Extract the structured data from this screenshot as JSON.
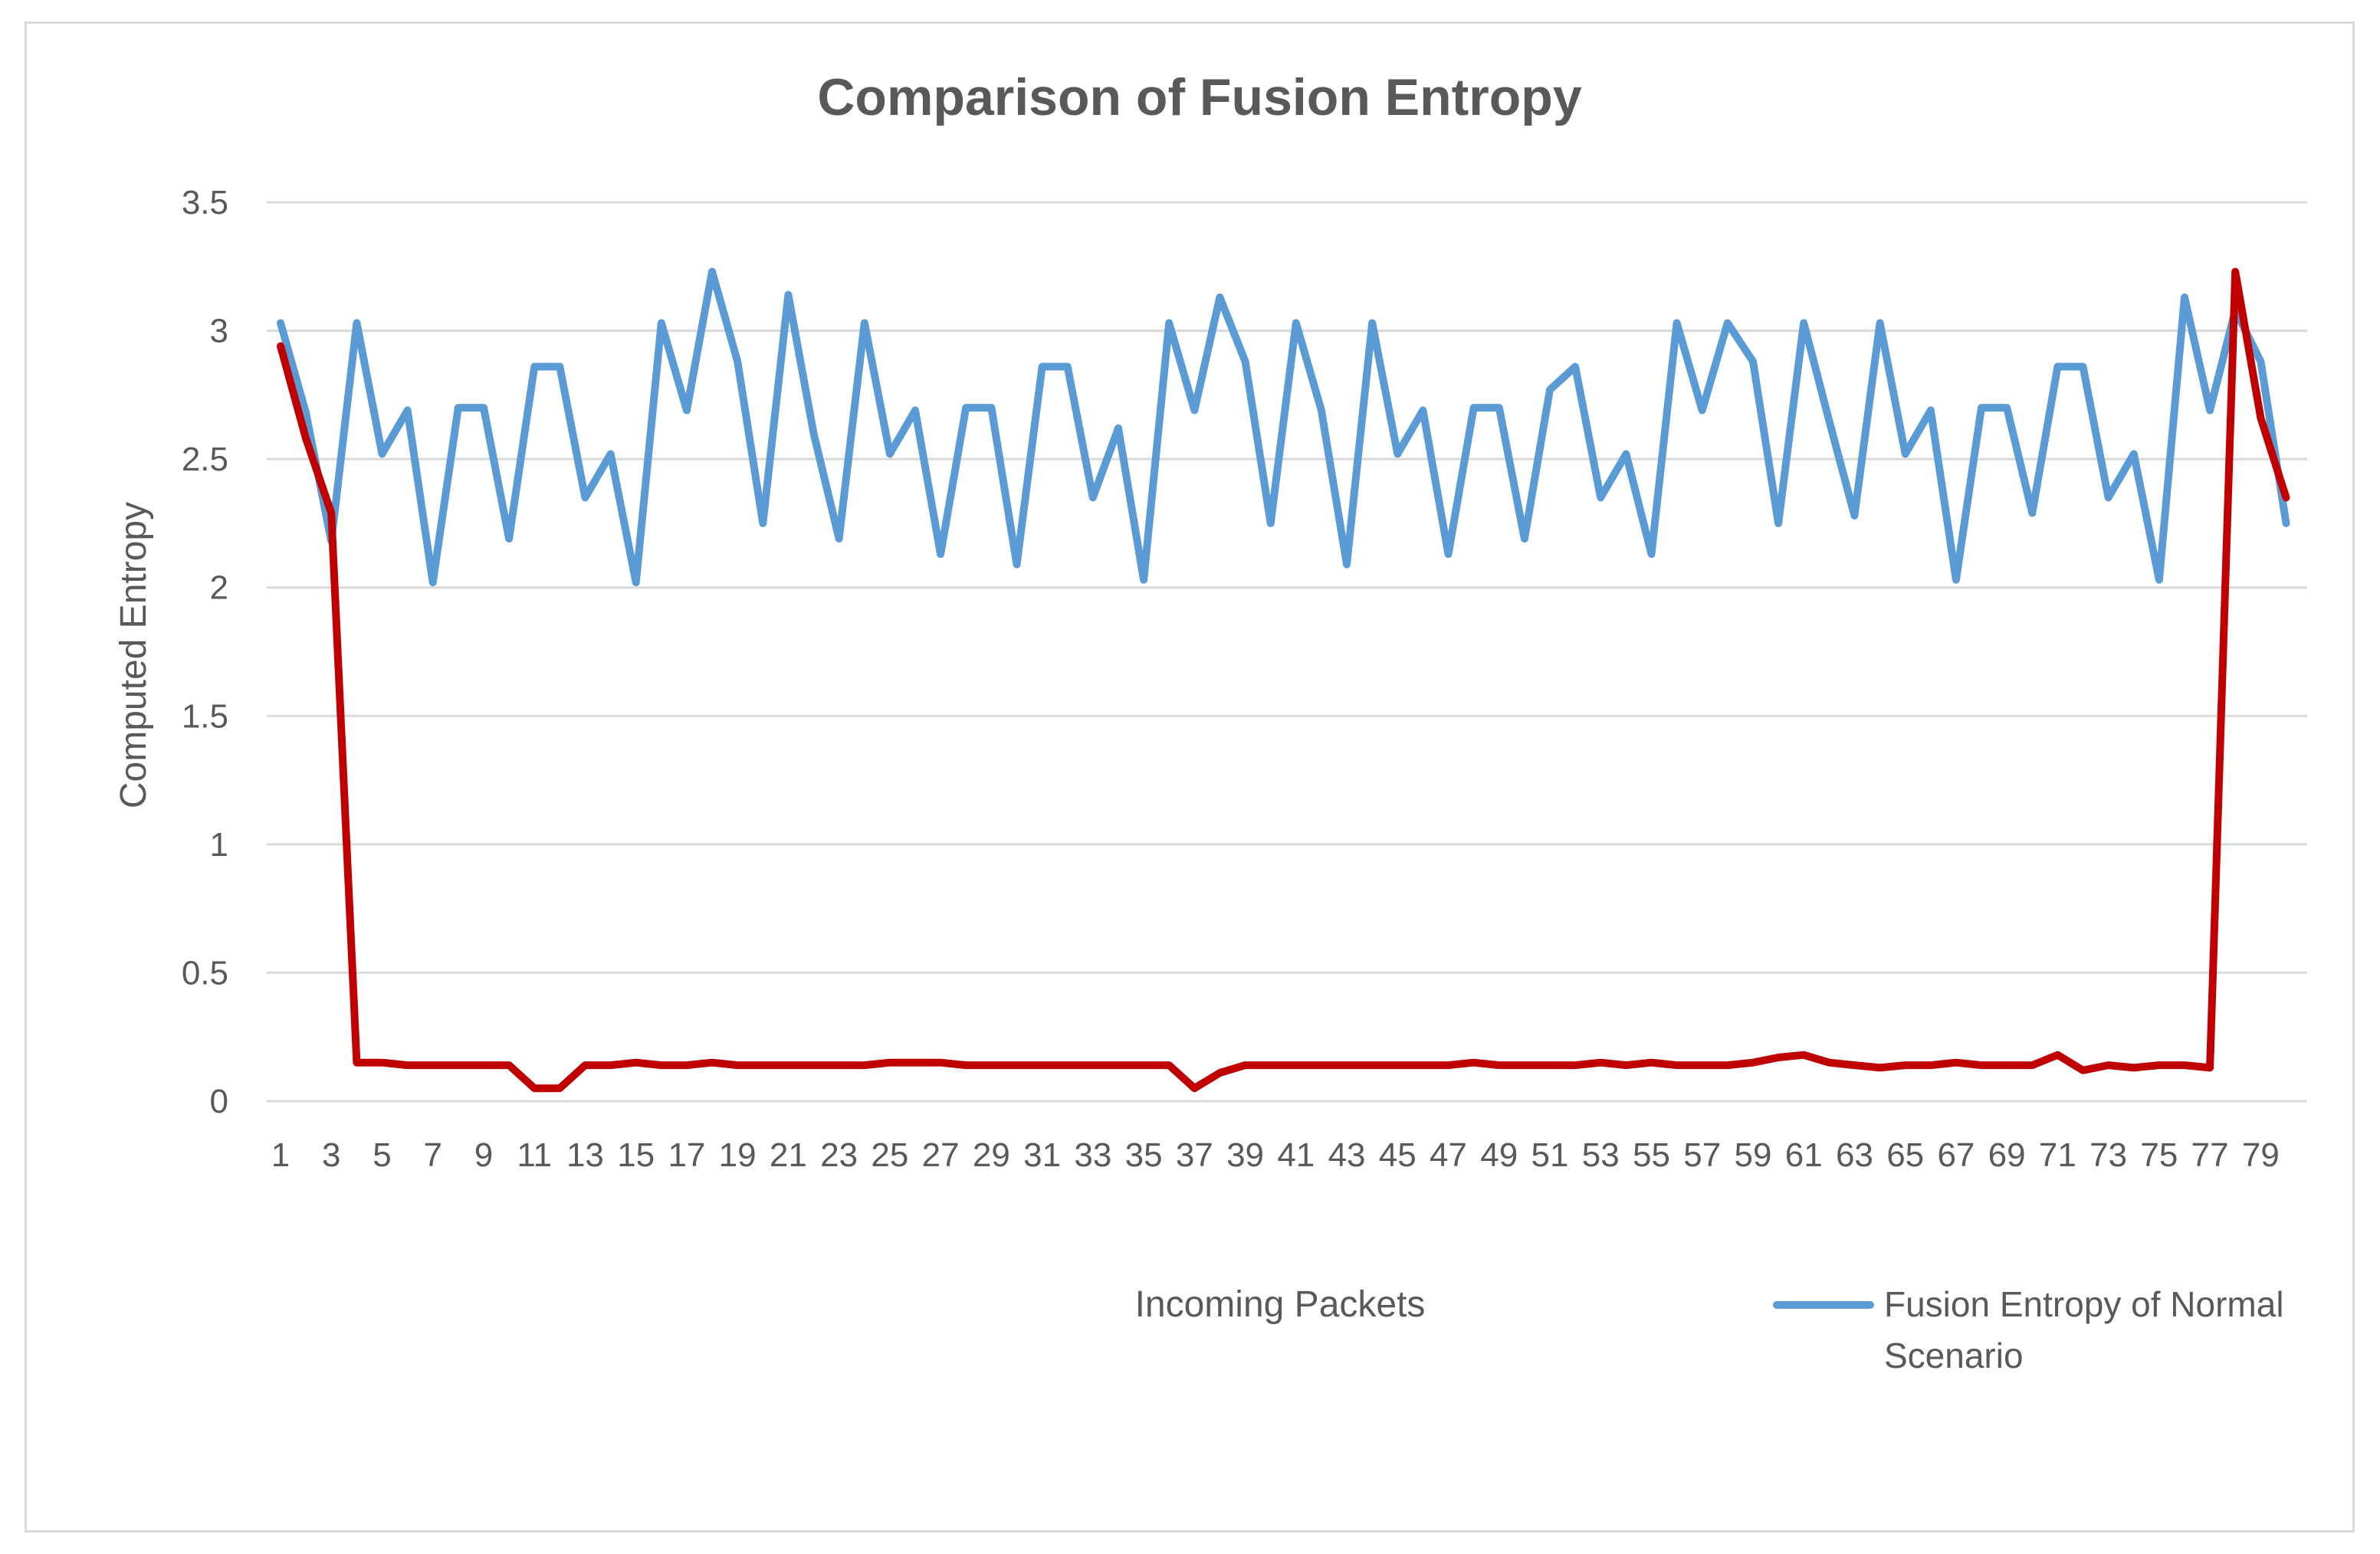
{
  "chart_data": {
    "type": "line",
    "title": "Comparison of Fusion Entropy",
    "xlabel": "Incoming Packets",
    "ylabel": "Computed Entropy",
    "ylim": [
      0,
      3.5
    ],
    "yticks": [
      "0",
      "0.5",
      "1",
      "1.5",
      "2",
      "2.5",
      "3",
      "3.5"
    ],
    "grid": true,
    "legend_position": "bottom-right",
    "x": [
      1,
      2,
      3,
      4,
      5,
      6,
      7,
      8,
      9,
      10,
      11,
      12,
      13,
      14,
      15,
      16,
      17,
      18,
      19,
      20,
      21,
      22,
      23,
      24,
      25,
      26,
      27,
      28,
      29,
      30,
      31,
      32,
      33,
      34,
      35,
      36,
      37,
      38,
      39,
      40,
      41,
      42,
      43,
      44,
      45,
      46,
      47,
      48,
      49,
      50,
      51,
      52,
      53,
      54,
      55,
      56,
      57,
      58,
      59,
      60,
      61,
      62,
      63,
      64,
      65,
      66,
      67,
      68,
      69,
      70,
      71,
      72,
      73,
      74,
      75,
      76,
      77,
      78,
      79,
      80
    ],
    "xtick_labels": [
      "1",
      "3",
      "5",
      "7",
      "9",
      "11",
      "13",
      "15",
      "17",
      "19",
      "21",
      "23",
      "25",
      "27",
      "29",
      "31",
      "33",
      "35",
      "37",
      "39",
      "41",
      "43",
      "45",
      "47",
      "49",
      "51",
      "53",
      "55",
      "57",
      "59",
      "61",
      "63",
      "65",
      "67",
      "69",
      "71",
      "73",
      "75",
      "77",
      "79"
    ],
    "series": [
      {
        "name": "Fusion Entropy of Normal Scenario",
        "color": "#5b9bd5",
        "values": [
          3.03,
          2.68,
          2.18,
          3.03,
          2.52,
          2.69,
          2.02,
          2.7,
          2.7,
          2.19,
          2.86,
          2.86,
          2.35,
          2.52,
          2.02,
          3.03,
          2.69,
          3.23,
          2.88,
          2.25,
          3.14,
          2.6,
          2.19,
          3.03,
          2.52,
          2.69,
          2.13,
          2.7,
          2.7,
          2.09,
          2.86,
          2.86,
          2.35,
          2.62,
          2.03,
          3.03,
          2.69,
          3.13,
          2.88,
          2.25,
          3.03,
          2.69,
          2.09,
          3.03,
          2.52,
          2.69,
          2.13,
          2.7,
          2.7,
          2.19,
          2.77,
          2.86,
          2.35,
          2.52,
          2.13,
          3.03,
          2.69,
          3.03,
          2.88,
          2.25,
          3.03,
          2.65,
          2.28,
          3.03,
          2.52,
          2.69,
          2.03,
          2.7,
          2.7,
          2.29,
          2.86,
          2.86,
          2.35,
          2.52,
          2.03,
          3.13,
          2.69,
          3.08,
          2.88,
          2.25
        ]
      },
      {
        "name": "",
        "color": "#c00000",
        "values": [
          2.94,
          2.58,
          2.29,
          0.15,
          0.15,
          0.14,
          0.14,
          0.14,
          0.14,
          0.14,
          0.05,
          0.05,
          0.14,
          0.14,
          0.15,
          0.14,
          0.14,
          0.15,
          0.14,
          0.14,
          0.14,
          0.14,
          0.14,
          0.14,
          0.15,
          0.15,
          0.15,
          0.14,
          0.14,
          0.14,
          0.14,
          0.14,
          0.14,
          0.14,
          0.14,
          0.14,
          0.05,
          0.11,
          0.14,
          0.14,
          0.14,
          0.14,
          0.14,
          0.14,
          0.14,
          0.14,
          0.14,
          0.15,
          0.14,
          0.14,
          0.14,
          0.14,
          0.15,
          0.14,
          0.15,
          0.14,
          0.14,
          0.14,
          0.15,
          0.17,
          0.18,
          0.15,
          0.14,
          0.13,
          0.14,
          0.14,
          0.15,
          0.14,
          0.14,
          0.14,
          0.18,
          0.12,
          0.14,
          0.13,
          0.14,
          0.14,
          0.13,
          3.23,
          2.66,
          2.35
        ]
      }
    ]
  }
}
